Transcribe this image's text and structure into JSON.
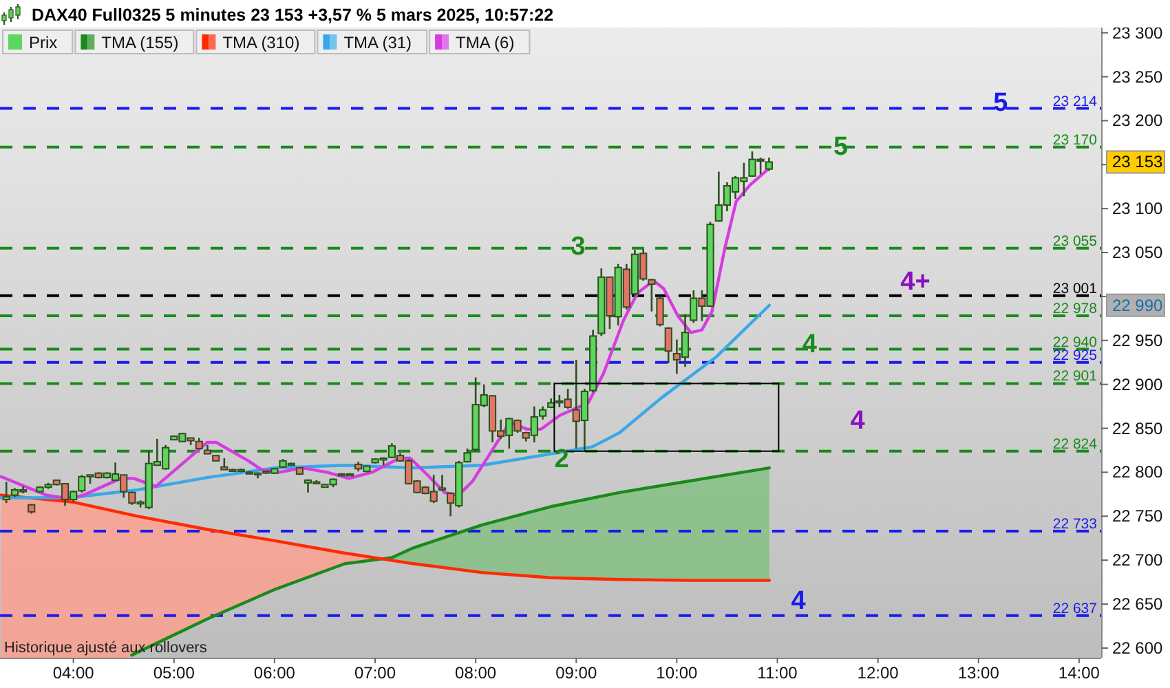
{
  "chart_data": {
    "type": "candlestick",
    "title": "DAX40 Full0325 5 minutes 23 153 +3,57 % 5 mars 2025, 10:57:22",
    "legend": "top left",
    "xlim": [
      3.27,
      14.22
    ],
    "xticks": [
      {
        "value": 4,
        "label": "04:00"
      },
      {
        "value": 5,
        "label": "05:00"
      },
      {
        "value": 6,
        "label": "06:00"
      },
      {
        "value": 7,
        "label": "07:00"
      },
      {
        "value": 8,
        "label": "08:00"
      },
      {
        "value": 9,
        "label": "09:00"
      },
      {
        "value": 10,
        "label": "10:00"
      },
      {
        "value": 11,
        "label": "11:00"
      },
      {
        "value": 12,
        "label": "12:00"
      },
      {
        "value": 13,
        "label": "13:00"
      },
      {
        "value": 14,
        "label": "14:00"
      }
    ],
    "ylim": [
      22589,
      23306
    ],
    "yticks": [
      {
        "value": 22600,
        "label": "22 600"
      },
      {
        "value": 22650,
        "label": "22 650"
      },
      {
        "value": 22700,
        "label": "22 700"
      },
      {
        "value": 22750,
        "label": "22 750"
      },
      {
        "value": 22800,
        "label": "22 800"
      },
      {
        "value": 22850,
        "label": "22 850"
      },
      {
        "value": 22900,
        "label": "22 900"
      },
      {
        "value": 22950,
        "label": "22 950"
      },
      {
        "value": 23000,
        "label": null
      },
      {
        "value": 23050,
        "label": "23 050"
      },
      {
        "value": 23100,
        "label": "23 100"
      },
      {
        "value": 23150,
        "label": null
      },
      {
        "value": 23200,
        "label": "23 200"
      },
      {
        "value": 23250,
        "label": "23 250"
      },
      {
        "value": 23300,
        "label": "23 300"
      }
    ],
    "series": [
      {
        "name": "Prix",
        "type": "candlestick",
        "colors": [
          "#5cd65c",
          "#5cd65c",
          "#e57368",
          "#e57368",
          "#5cd65c",
          "#5cd65c",
          "#e57368",
          "#e57368",
          "#5cd65c",
          "#5cd65c",
          "#5cd65c",
          "#e57368",
          "#5cd65c",
          "#5cd65c",
          "#e57368",
          "#e57368",
          "#5cd65c",
          "#5cd65c",
          "#5cd65c",
          "#5cd65c",
          "#5cd65c",
          "#5cd65c",
          "#e57368",
          "#e57368",
          "#e57368",
          "#e57368",
          "#e57368",
          "#e57368",
          "#5cd65c",
          "#5cd65c",
          "#5cd65c",
          "#e57368",
          "#5cd65c",
          "#5cd65c",
          "#5cd65c",
          "#e57368",
          "#5cd65c",
          "#e57368",
          "#5cd65c",
          "#5cd65c",
          "#5cd65c",
          "#5cd65c",
          "#e57368",
          "#5cd65c",
          "#5cd65c",
          "#5cd65c",
          "#5cd65c",
          "#e57368",
          "#e57368",
          "#e57368",
          "#e57368",
          "#e57368",
          "#5cd65c",
          "#e57368",
          "#5cd65c",
          "#5cd65c",
          "#5cd65c",
          "#5cd65c",
          "#e57368",
          "#e57368",
          "#5cd65c",
          "#e57368",
          "#e57368",
          "#5cd65c",
          "#5cd65c",
          "#5cd65c",
          "#5cd65c",
          "#e57368",
          "#e57368",
          "#5cd65c",
          "#5cd65c",
          "#5cd65c",
          "#e57368",
          "#5cd65c",
          "#e57368",
          "#5cd65c",
          "#e57368",
          "#e57368",
          "#e57368",
          "#e57368",
          "#e57368",
          "#5cd65c",
          "#5cd65c",
          "#e57368",
          "#5cd65c",
          "#5cd65c",
          "#5cd65c",
          "#5cd65c",
          "#5cd65c",
          "#5cd65c",
          "#5cd65c",
          "#5cd65c"
        ],
        "x": [
          3.333,
          3.417,
          3.5,
          3.583,
          3.667,
          3.75,
          3.833,
          3.917,
          4,
          4.083,
          4.167,
          4.25,
          4.333,
          4.417,
          4.5,
          4.583,
          4.667,
          4.75,
          4.833,
          4.917,
          5,
          5.083,
          5.167,
          5.25,
          5.333,
          5.417,
          5.5,
          5.583,
          5.667,
          5.75,
          5.833,
          5.917,
          6,
          6.083,
          6.167,
          6.25,
          6.333,
          6.417,
          6.5,
          6.583,
          6.667,
          6.75,
          6.833,
          6.917,
          7,
          7.083,
          7.167,
          7.25,
          7.333,
          7.417,
          7.5,
          7.583,
          7.667,
          7.75,
          7.833,
          7.917,
          8,
          8.083,
          8.167,
          8.25,
          8.333,
          8.417,
          8.5,
          8.583,
          8.667,
          8.75,
          8.833,
          8.917,
          9,
          9.083,
          9.167,
          9.25,
          9.333,
          9.417,
          9.5,
          9.583,
          9.667,
          9.75,
          9.833,
          9.917,
          10,
          10.083,
          10.167,
          10.25,
          10.333,
          10.417,
          10.5,
          10.583,
          10.667,
          10.75,
          10.833,
          10.917
        ],
        "ohlc": [
          [
            22769,
            22789,
            22765,
            22772
          ],
          [
            22774,
            22782,
            22772,
            22780
          ],
          [
            22780,
            22784,
            22776,
            22778
          ],
          [
            22763,
            22764,
            22753,
            22755
          ],
          [
            22778,
            22784,
            22778,
            22783
          ],
          [
            22783,
            22788,
            22781,
            22786
          ],
          [
            22791,
            22791,
            22785,
            22786
          ],
          [
            22787,
            22787,
            22762,
            22769
          ],
          [
            22769,
            22779,
            22766,
            22778
          ],
          [
            22779,
            22797,
            22777,
            22795
          ],
          [
            22795,
            22797,
            22787,
            22797
          ],
          [
            22799,
            22800,
            22793,
            22794
          ],
          [
            22794,
            22800,
            22793,
            22799
          ],
          [
            22791,
            22811,
            22790,
            22798
          ],
          [
            22797,
            22797,
            22771,
            22778
          ],
          [
            22777,
            22778,
            22763,
            22765
          ],
          [
            22765,
            22768,
            22760,
            22766
          ],
          [
            22760,
            22824,
            22758,
            22810
          ],
          [
            22808,
            22838,
            22808,
            22812
          ],
          [
            22804,
            22831,
            22803,
            22828
          ],
          [
            22837,
            22841,
            22837,
            22841
          ],
          [
            22835,
            22845,
            22835,
            22844
          ],
          [
            22839,
            22839,
            22831,
            22836
          ],
          [
            22835,
            22839,
            22826,
            22827
          ],
          [
            22825,
            22831,
            22821,
            22821
          ],
          [
            22819,
            22819,
            22813,
            22813
          ],
          [
            22806,
            22816,
            22803,
            22803
          ],
          [
            22803,
            22804,
            22801,
            22802
          ],
          [
            22802,
            22804,
            22800,
            22803
          ],
          [
            22800,
            22801,
            22799,
            22800
          ],
          [
            22799,
            22800,
            22793,
            22799
          ],
          [
            22801,
            22802,
            22798,
            22800
          ],
          [
            22799,
            22805,
            22798,
            22804
          ],
          [
            22806,
            22815,
            22805,
            22813
          ],
          [
            22810,
            22811,
            22809,
            22810
          ],
          [
            22805,
            22806,
            22797,
            22798
          ],
          [
            22788,
            22792,
            22777,
            22791
          ],
          [
            22789,
            22791,
            22787,
            22788
          ],
          [
            22783,
            22787,
            22783,
            22786
          ],
          [
            22786,
            22793,
            22783,
            22792
          ],
          [
            22798,
            22799,
            22797,
            22798
          ],
          [
            22798,
            22799,
            22797,
            22798
          ],
          [
            22809,
            22812,
            22801,
            22804
          ],
          [
            22801,
            22808,
            22800,
            22807
          ],
          [
            22811,
            22816,
            22810,
            22815
          ],
          [
            22816,
            22817,
            22808,
            22816
          ],
          [
            22817,
            22833,
            22816,
            22830
          ],
          [
            22819,
            22822,
            22812,
            22813
          ],
          [
            22813,
            22815,
            22786,
            22787
          ],
          [
            22790,
            22791,
            22776,
            22777
          ],
          [
            22783,
            22784,
            22775,
            22776
          ],
          [
            22778,
            22797,
            22765,
            22767
          ],
          [
            22780,
            22797,
            22779,
            22782
          ],
          [
            22776,
            22777,
            22750,
            22765
          ],
          [
            22762,
            22813,
            22760,
            22811
          ],
          [
            22812,
            22827,
            22811,
            22822
          ],
          [
            22826,
            22908,
            22824,
            22877
          ],
          [
            22876,
            22900,
            22874,
            22888
          ],
          [
            22887,
            22888,
            22834,
            22847
          ],
          [
            22847,
            22860,
            22838,
            22841
          ],
          [
            22842,
            22862,
            22827,
            22861
          ],
          [
            22859,
            22860,
            22845,
            22847
          ],
          [
            22845,
            22846,
            22835,
            22839
          ],
          [
            22842,
            22875,
            22834,
            22863
          ],
          [
            22864,
            22875,
            22860,
            22871
          ],
          [
            22874,
            22884,
            22873,
            22879
          ],
          [
            22880,
            22888,
            22874,
            22881
          ],
          [
            22883,
            22895,
            22872,
            22874
          ],
          [
            22871,
            22928,
            22827,
            22858
          ],
          [
            22859,
            22895,
            22824,
            22892
          ],
          [
            22893,
            22962,
            22891,
            22955
          ],
          [
            22958,
            23032,
            22955,
            23022
          ],
          [
            23022,
            23022,
            22963,
            22978
          ],
          [
            22977,
            23037,
            22967,
            23033
          ],
          [
            23031,
            23037,
            22985,
            22988
          ],
          [
            23003,
            23053,
            23000,
            23048
          ],
          [
            23049,
            23054,
            23018,
            23020
          ],
          [
            23019,
            23020,
            22983,
            23014
          ],
          [
            22998,
            23000,
            22966,
            22968
          ],
          [
            22964,
            22965,
            22924,
            22938
          ],
          [
            22935,
            22951,
            22912,
            22928
          ],
          [
            22931,
            22980,
            22920,
            22959
          ],
          [
            22973,
            23007,
            22970,
            22998
          ],
          [
            22998,
            23007,
            22972,
            22989
          ],
          [
            22989,
            23085,
            22988,
            23082
          ],
          [
            23086,
            23142,
            23085,
            23104
          ],
          [
            23104,
            23130,
            23097,
            23126
          ],
          [
            23119,
            23137,
            23111,
            23135
          ],
          [
            23131,
            23152,
            23114,
            23135
          ],
          [
            23137,
            23165,
            23136,
            23156
          ],
          [
            23156,
            23158,
            23139,
            23156
          ],
          [
            23145,
            23158,
            23143,
            23153
          ]
        ]
      },
      {
        "name": "TMA (155)",
        "type": "line",
        "color": "#1a8a1a",
        "x": [
          4.58,
          5.33,
          6.01,
          6.7,
          7.17,
          7.38,
          8.06,
          8.75,
          9.43,
          10.12,
          10.92
        ],
        "values": [
          22592,
          22633,
          22667,
          22696,
          22703,
          22714,
          22740,
          22761,
          22777,
          22790,
          22805
        ]
      },
      {
        "name": "TMA (310)",
        "type": "line",
        "color": "#ff2a00",
        "x": [
          3.28,
          4,
          4.64,
          5.33,
          6.01,
          6.7,
          7.38,
          8.06,
          8.75,
          9.43,
          10.12,
          10.92
        ],
        "values": [
          22774,
          22766,
          22750,
          22735,
          22722,
          22708,
          22696,
          22686,
          22680,
          22678,
          22677,
          22677
        ]
      },
      {
        "name": "TMA (31)",
        "type": "line",
        "color": "#3aa8e8",
        "x": [
          3.28,
          3.96,
          4.64,
          5.33,
          6.01,
          6.7,
          7.38,
          8.06,
          8.75,
          9.16,
          9.43,
          9.84,
          10.39,
          10.92
        ],
        "values": [
          22771,
          22771,
          22780,
          22794,
          22805,
          22808,
          22805,
          22808,
          22821,
          22829,
          22845,
          22884,
          22931,
          22990
        ]
      },
      {
        "name": "TMA (6)",
        "type": "line",
        "color": "#d63ce0",
        "x": [
          3.28,
          3.73,
          3.96,
          4.1,
          4.47,
          4.6,
          4.82,
          5.33,
          5.42,
          5.74,
          5.87,
          6.05,
          6.28,
          6.52,
          6.74,
          6.97,
          7.24,
          7.35,
          7.52,
          7.69,
          7.83,
          7.97,
          8.34,
          8.51,
          8.65,
          8.84,
          9.12,
          9.27,
          9.47,
          9.61,
          9.77,
          9.87,
          10.01,
          10.14,
          10.25,
          10.35,
          10.48,
          10.59,
          10.73,
          10.92
        ],
        "values": [
          22795,
          22774,
          22770,
          22774,
          22793,
          22793,
          22784,
          22834,
          22834,
          22813,
          22803,
          22800,
          22805,
          22800,
          22793,
          22800,
          22816,
          22816,
          22797,
          22777,
          22774,
          22790,
          22857,
          22849,
          22849,
          22865,
          22879,
          22912,
          22973,
          23004,
          23018,
          23009,
          22978,
          22959,
          22962,
          22983,
          23056,
          23108,
          23127,
          23146
        ]
      }
    ],
    "ref_lines": [
      {
        "axis": "y",
        "value": 23214,
        "label": "23 214",
        "color": "#1a1aee",
        "line_style": "dashed"
      },
      {
        "axis": "y",
        "value": 23170,
        "label": "23 170",
        "color": "#1a8a1a",
        "line_style": "dashed"
      },
      {
        "axis": "y",
        "value": 23055,
        "label": "23 055",
        "color": "#1a8a1a",
        "line_style": "dashed"
      },
      {
        "axis": "y",
        "value": 23001,
        "label": "23 001",
        "color": "#000000",
        "line_style": "dashed"
      },
      {
        "axis": "y",
        "value": 22978,
        "label": "22 978",
        "color": "#1a8a1a",
        "line_style": "dashed"
      },
      {
        "axis": "y",
        "value": 22940,
        "label": "22 940",
        "color": "#1a8a1a",
        "line_style": "dashed"
      },
      {
        "axis": "y",
        "value": 22925,
        "label": "22 925",
        "color": "#1a1aee",
        "line_style": "dashed"
      },
      {
        "axis": "y",
        "value": 22901,
        "label": "22 901",
        "color": "#1a8a1a",
        "line_style": "dashed"
      },
      {
        "axis": "y",
        "value": 22824,
        "label": "22 824",
        "color": "#1a8a1a",
        "line_style": "dashed"
      },
      {
        "axis": "y",
        "value": 22733,
        "label": "22 733",
        "color": "#1a1aee",
        "line_style": "dashed"
      },
      {
        "axis": "y",
        "value": 22637,
        "label": "22 637",
        "color": "#1a1aee",
        "line_style": "dashed"
      }
    ],
    "annotations": [
      "Historique ajusté aux rollovers",
      {
        "text": "5",
        "x": 13.22,
        "y": 23220
      },
      {
        "text": "5",
        "x": 11.63,
        "y": 23170
      },
      {
        "text": "3",
        "x": 9.02,
        "y": 23056
      },
      "4+",
      {
        "text": "4",
        "x": 11.32,
        "y": 22945
      },
      "4",
      "2",
      "4",
      "23 153",
      "22 990"
    ]
  }
}
